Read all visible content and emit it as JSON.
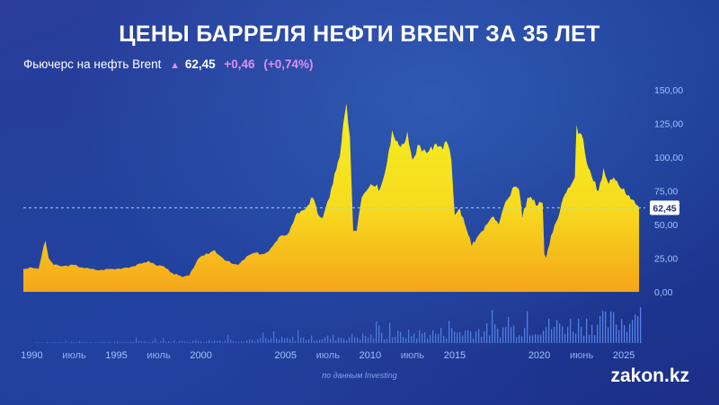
{
  "title": "ЦЕНЫ БАРРЕЛЯ НЕФТИ BRENT ЗА 35 ЛЕТ",
  "subtitle": {
    "label": "Фьючерс на нефть Brent",
    "arrow_icon": "up-arrow-icon",
    "price": "62,45",
    "change": "+0,46",
    "change_pct": "(+0,74%)"
  },
  "source": "по данным Investing",
  "logo": "zakon.kz",
  "colors": {
    "area_top": "#f3f021",
    "area_bottom": "#f5a51a",
    "volume": "#5a8cf0",
    "current_line": "#8fd8ff",
    "axis_text": "#9fc4ff"
  },
  "chart_data": {
    "type": "area",
    "series": [
      {
        "x": [
          1989.5,
          1990.0,
          1990.4,
          1990.6,
          1990.8,
          1991.0,
          1991.3,
          1991.8,
          1992.5,
          1993.0,
          1993.5,
          1994.0,
          1994.5,
          1995.0,
          1995.5,
          1996.0,
          1996.5,
          1996.9,
          1997.3,
          1997.8,
          1998.3,
          1998.9,
          1999.3,
          1999.8,
          2000.2,
          2000.8,
          2001.3,
          2001.8,
          2002.2,
          2002.8,
          2003.2,
          2003.6,
          2004.0,
          2004.5,
          2004.8,
          2005.2,
          2005.6,
          2005.9,
          2006.3,
          2006.6,
          2006.9,
          2007.2,
          2007.6,
          2007.9,
          2008.2,
          2008.5,
          2008.6,
          2008.8,
          2009.0,
          2009.2,
          2009.5,
          2009.9,
          2010.3,
          2010.6,
          2010.9,
          2011.1,
          2011.3,
          2011.6,
          2011.9,
          2012.2,
          2012.5,
          2012.8,
          2013.2,
          2013.6,
          2013.9,
          2014.2,
          2014.5,
          2014.8,
          2015.0,
          2015.3,
          2015.6,
          2015.9,
          2016.0,
          2016.3,
          2016.6,
          2016.9,
          2017.3,
          2017.6,
          2017.9,
          2018.2,
          2018.5,
          2018.8,
          2019.0,
          2019.3,
          2019.6,
          2019.9,
          2020.2,
          2020.3,
          2020.4,
          2020.7,
          2021.0,
          2021.3,
          2021.6,
          2021.9,
          2022.1,
          2022.2,
          2022.4,
          2022.6,
          2022.9,
          2023.2,
          2023.5,
          2023.8,
          2024.1,
          2024.4,
          2024.7,
          2025.0,
          2025.3,
          2025.6,
          2025.9
        ],
        "values": [
          17,
          18,
          17,
          28,
          38,
          25,
          20,
          19,
          20,
          18,
          17,
          16,
          17,
          17,
          18,
          19,
          21,
          23,
          20,
          19,
          14,
          11,
          12,
          24,
          27,
          31,
          25,
          21,
          20,
          27,
          29,
          28,
          30,
          38,
          42,
          44,
          57,
          60,
          64,
          70,
          58,
          55,
          70,
          88,
          100,
          132,
          140,
          115,
          45,
          45,
          70,
          77,
          78,
          77,
          90,
          105,
          120,
          112,
          110,
          119,
          98,
          109,
          106,
          108,
          110,
          108,
          112,
          98,
          57,
          62,
          50,
          40,
          34,
          40,
          45,
          50,
          56,
          50,
          63,
          70,
          78,
          76,
          55,
          70,
          68,
          64,
          66,
          28,
          25,
          42,
          52,
          65,
          74,
          80,
          85,
          124,
          118,
          113,
          92,
          82,
          75,
          92,
          80,
          85,
          79,
          77,
          72,
          68,
          62.45
        ],
        "unit": "USD"
      }
    ],
    "x_tick_labels": [
      "1990",
      "июль",
      "1995",
      "июль",
      "2000",
      "2005",
      "июль",
      "2010",
      "июль",
      "2015",
      "2020",
      "июнь",
      "2025"
    ],
    "x_tick_positions": [
      1990.0,
      1992.5,
      1995.0,
      1997.5,
      2000.0,
      2005.0,
      2007.5,
      2010.0,
      2012.5,
      2015.0,
      2020.0,
      2022.5,
      2025.0
    ],
    "y_tick_labels": [
      "150,00",
      "125,00",
      "100,00",
      "75,00",
      "50,00",
      "25,00",
      "0,00"
    ],
    "ylim": [
      0,
      150
    ],
    "xlim": [
      1989.5,
      2026.0
    ],
    "current_value": 62.45,
    "current_label": "62,45",
    "volume": true,
    "grid": false
  }
}
